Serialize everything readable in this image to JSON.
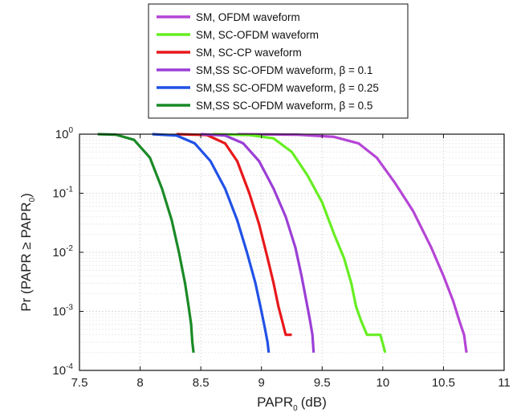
{
  "chart_data": {
    "type": "line",
    "title": "",
    "xlabel": "PAPR",
    "xlabel_subscript": "0",
    "xlabel_unit": "(dB)",
    "ylabel": "Pr (PAPR ≥ PAPR",
    "ylabel_subscript": "0",
    "ylabel_tail": ")",
    "xlim": [
      7.5,
      11
    ],
    "ylim": [
      0.0001,
      1
    ],
    "yscale": "log",
    "grid": true,
    "legend_position": "top-center",
    "x_ticks": [
      "7.5",
      "8",
      "8.5",
      "9",
      "9.5",
      "10",
      "10.5",
      "11"
    ],
    "y_ticks": [
      {
        "base": "10",
        "exp": "0"
      },
      {
        "base": "10",
        "exp": "-1"
      },
      {
        "base": "10",
        "exp": "-2"
      },
      {
        "base": "10",
        "exp": "-3"
      },
      {
        "base": "10",
        "exp": "-4"
      }
    ],
    "series": [
      {
        "name": "SM, OFDM waveform",
        "color": "#b545d6",
        "x": [
          8.8,
          9.3,
          9.6,
          9.8,
          9.95,
          10.1,
          10.25,
          10.4,
          10.5,
          10.58,
          10.63,
          10.67,
          10.69
        ],
        "y": [
          1,
          0.98,
          0.9,
          0.7,
          0.4,
          0.15,
          0.05,
          0.012,
          0.004,
          0.0015,
          0.0007,
          0.0004,
          0.0002
        ]
      },
      {
        "name": "SM, SC-OFDM waveform",
        "color": "#66ee22",
        "x": [
          8.6,
          8.9,
          9.1,
          9.25,
          9.38,
          9.5,
          9.6,
          9.68,
          9.74,
          9.78,
          9.82,
          9.87,
          9.98,
          10.02
        ],
        "y": [
          1,
          0.97,
          0.85,
          0.5,
          0.2,
          0.07,
          0.02,
          0.008,
          0.003,
          0.0012,
          0.0007,
          0.0004,
          0.0004,
          0.0002
        ]
      },
      {
        "name": "SM, SC-CP waveform",
        "color": "#e8181b",
        "x": [
          8.3,
          8.55,
          8.7,
          8.8,
          8.9,
          8.98,
          9.05,
          9.1,
          9.14,
          9.17,
          9.2,
          9.25
        ],
        "y": [
          1,
          0.97,
          0.7,
          0.35,
          0.1,
          0.03,
          0.008,
          0.003,
          0.0012,
          0.0007,
          0.0004,
          0.0004
        ]
      },
      {
        "name": "SM,SS SC-OFDM waveform, β = 0.1",
        "color": "#9b3ed6",
        "x": [
          8.5,
          8.7,
          8.85,
          8.98,
          9.1,
          9.2,
          9.28,
          9.33,
          9.37,
          9.4,
          9.42,
          9.43
        ],
        "y": [
          1,
          0.95,
          0.7,
          0.35,
          0.12,
          0.04,
          0.012,
          0.004,
          0.0015,
          0.0007,
          0.0004,
          0.0002
        ]
      },
      {
        "name": "SM,SS SC-OFDM waveform, β = 0.25",
        "color": "#2151e6",
        "x": [
          8.1,
          8.3,
          8.45,
          8.58,
          8.7,
          8.8,
          8.88,
          8.95,
          9.0,
          9.03,
          9.05,
          9.06
        ],
        "y": [
          1,
          0.95,
          0.7,
          0.35,
          0.12,
          0.035,
          0.01,
          0.003,
          0.001,
          0.0005,
          0.0003,
          0.0002
        ]
      },
      {
        "name": "SM,SS SC-OFDM waveform, β = 0.5",
        "color": "#1a8a26",
        "x": [
          7.65,
          7.8,
          7.95,
          8.08,
          8.18,
          8.26,
          8.32,
          8.37,
          8.4,
          8.42,
          8.43,
          8.44
        ],
        "y": [
          1,
          0.98,
          0.8,
          0.4,
          0.12,
          0.035,
          0.01,
          0.003,
          0.0012,
          0.0006,
          0.0003,
          0.0002
        ]
      }
    ]
  }
}
